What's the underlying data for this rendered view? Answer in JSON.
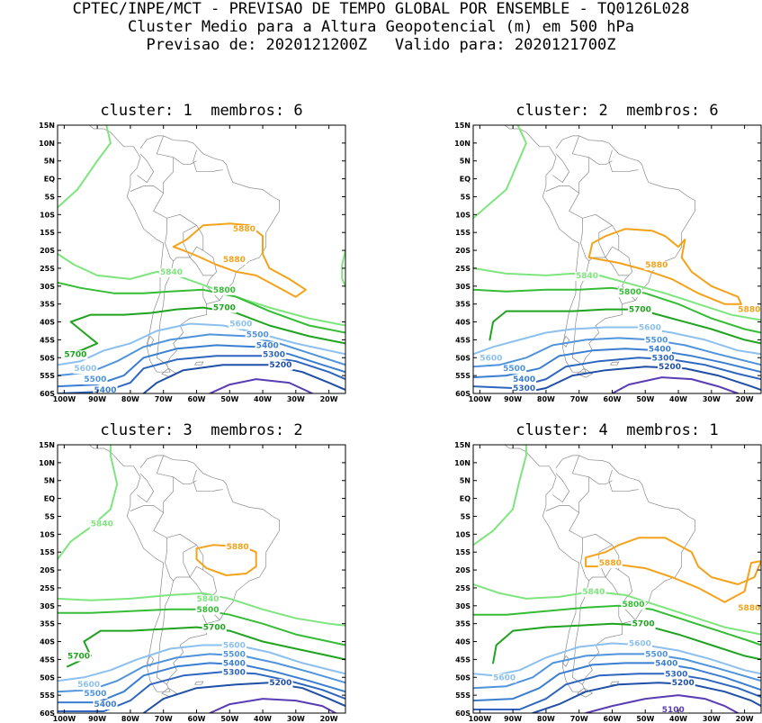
{
  "header": {
    "line1": "CPTEC/INPE/MCT - PREVISAO DE TEMPO GLOBAL POR ENSEMBLE - TQ0126L028",
    "line2": "Cluster Medio para a Altura Geopotencial (m) em 500 hPa",
    "line3": "Previsao de: 2020121200Z   Valido para: 2020121700Z"
  },
  "axes": {
    "lat_labels": [
      "15N",
      "10N",
      "5N",
      "EQ",
      "5S",
      "10S",
      "15S",
      "20S",
      "25S",
      "30S",
      "35S",
      "40S",
      "45S",
      "50S",
      "55S",
      "60S"
    ],
    "lon_labels": [
      "100W",
      "90W",
      "80W",
      "70W",
      "60W",
      "50W",
      "40W",
      "30W",
      "20W"
    ]
  },
  "colors": {
    "c5100": "#5a3cb4",
    "c5200": "#1f4fa6",
    "c5300": "#2e66bf",
    "c5400": "#3a7ed2",
    "c5500": "#4f94dc",
    "c5600": "#8cc0ee",
    "c5700": "#1fa41f",
    "c5800": "#35bd35",
    "c5840": "#7ee57e",
    "c5880": "#f5a21b",
    "land": "#8a8a8a"
  },
  "panels": [
    {
      "title": "cluster: 1  membros: 6",
      "labels": [
        {
          "text": "5880",
          "lon": -49,
          "lat": -14,
          "c": "c5880"
        },
        {
          "text": "5880",
          "lon": -52,
          "lat": -22.5,
          "c": "c5880"
        },
        {
          "text": "5840",
          "lon": -71,
          "lat": -26,
          "c": "c5840"
        },
        {
          "text": "5800",
          "lon": -55,
          "lat": -31,
          "c": "c5800"
        },
        {
          "text": "5700",
          "lon": -55,
          "lat": -36,
          "c": "c5700"
        },
        {
          "text": "5700",
          "lon": -100,
          "lat": -49,
          "c": "c5700"
        },
        {
          "text": "5600",
          "lon": -50,
          "lat": -40.5,
          "c": "c5600"
        },
        {
          "text": "5600",
          "lon": -97,
          "lat": -53,
          "c": "c5600"
        },
        {
          "text": "5500",
          "lon": -45,
          "lat": -43.5,
          "c": "c5500"
        },
        {
          "text": "5500",
          "lon": -94,
          "lat": -56,
          "c": "c5500"
        },
        {
          "text": "5400",
          "lon": -42,
          "lat": -46.5,
          "c": "c5400"
        },
        {
          "text": "5400",
          "lon": -91,
          "lat": -59,
          "c": "c5400"
        },
        {
          "text": "5300",
          "lon": -40,
          "lat": -49,
          "c": "c5300"
        },
        {
          "text": "5200",
          "lon": -38,
          "lat": -52,
          "c": "c5200"
        }
      ]
    },
    {
      "title": "cluster: 2  membros: 6",
      "labels": [
        {
          "text": "5880",
          "lon": -50,
          "lat": -24,
          "c": "c5880"
        },
        {
          "text": "5880",
          "lon": -22,
          "lat": -36.5,
          "c": "c5880"
        },
        {
          "text": "5840",
          "lon": -71,
          "lat": -27,
          "c": "c5840"
        },
        {
          "text": "5800",
          "lon": -58,
          "lat": -31.5,
          "c": "c5800"
        },
        {
          "text": "5700",
          "lon": -55,
          "lat": -36.5,
          "c": "c5700"
        },
        {
          "text": "5600",
          "lon": -52,
          "lat": -41.5,
          "c": "c5600"
        },
        {
          "text": "5600",
          "lon": -100,
          "lat": -50,
          "c": "c5600"
        },
        {
          "text": "5500",
          "lon": -50,
          "lat": -45,
          "c": "c5500"
        },
        {
          "text": "5500",
          "lon": -93,
          "lat": -53,
          "c": "c5500"
        },
        {
          "text": "5400",
          "lon": -49,
          "lat": -47.5,
          "c": "c5400"
        },
        {
          "text": "5400",
          "lon": -90,
          "lat": -56,
          "c": "c5400"
        },
        {
          "text": "5300",
          "lon": -48,
          "lat": -50,
          "c": "c5300"
        },
        {
          "text": "5300",
          "lon": -90,
          "lat": -58.5,
          "c": "c5300"
        },
        {
          "text": "5200",
          "lon": -46,
          "lat": -52.5,
          "c": "c5200"
        }
      ]
    },
    {
      "title": "cluster: 3  membros: 2",
      "labels": [
        {
          "text": "5840",
          "lon": -92,
          "lat": -7,
          "c": "c5840"
        },
        {
          "text": "5880",
          "lon": -51,
          "lat": -13.5,
          "c": "c5880"
        },
        {
          "text": "5840",
          "lon": -60,
          "lat": -28,
          "c": "c5840"
        },
        {
          "text": "5800",
          "lon": -60,
          "lat": -31,
          "c": "c5800"
        },
        {
          "text": "5700",
          "lon": -58,
          "lat": -36,
          "c": "c5700"
        },
        {
          "text": "5700",
          "lon": -99,
          "lat": -44,
          "c": "c5700"
        },
        {
          "text": "5600",
          "lon": -52,
          "lat": -41,
          "c": "c5600"
        },
        {
          "text": "5600",
          "lon": -96,
          "lat": -52,
          "c": "c5600"
        },
        {
          "text": "5500",
          "lon": -52,
          "lat": -43.5,
          "c": "c5500"
        },
        {
          "text": "5500",
          "lon": -94,
          "lat": -54.5,
          "c": "c5500"
        },
        {
          "text": "5400",
          "lon": -52,
          "lat": -46,
          "c": "c5400"
        },
        {
          "text": "5400",
          "lon": -91,
          "lat": -57.5,
          "c": "c5400"
        },
        {
          "text": "5300",
          "lon": -52,
          "lat": -48.5,
          "c": "c5300"
        },
        {
          "text": "5200",
          "lon": -38,
          "lat": -51.5,
          "c": "c5200"
        }
      ]
    },
    {
      "title": "cluster: 4  membros: 1",
      "labels": [
        {
          "text": "5880",
          "lon": -64,
          "lat": -18,
          "c": "c5880"
        },
        {
          "text": "5880",
          "lon": -22,
          "lat": -30.5,
          "c": "c5880"
        },
        {
          "text": "5840",
          "lon": -69,
          "lat": -26,
          "c": "c5840"
        },
        {
          "text": "5800",
          "lon": -57,
          "lat": -29.5,
          "c": "c5800"
        },
        {
          "text": "5700",
          "lon": -54,
          "lat": -35,
          "c": "c5700"
        },
        {
          "text": "5600",
          "lon": -55,
          "lat": -40.5,
          "c": "c5600"
        },
        {
          "text": "5600",
          "lon": -96,
          "lat": -50,
          "c": "c5600"
        },
        {
          "text": "5500",
          "lon": -50,
          "lat": -43.5,
          "c": "c5500"
        },
        {
          "text": "5400",
          "lon": -47,
          "lat": -46,
          "c": "c5400"
        },
        {
          "text": "5300",
          "lon": -44,
          "lat": -49,
          "c": "c5300"
        },
        {
          "text": "5200",
          "lon": -42,
          "lat": -51.5,
          "c": "c5200"
        },
        {
          "text": "5100",
          "lon": -45,
          "lat": -59,
          "c": "c5100"
        }
      ]
    }
  ]
}
